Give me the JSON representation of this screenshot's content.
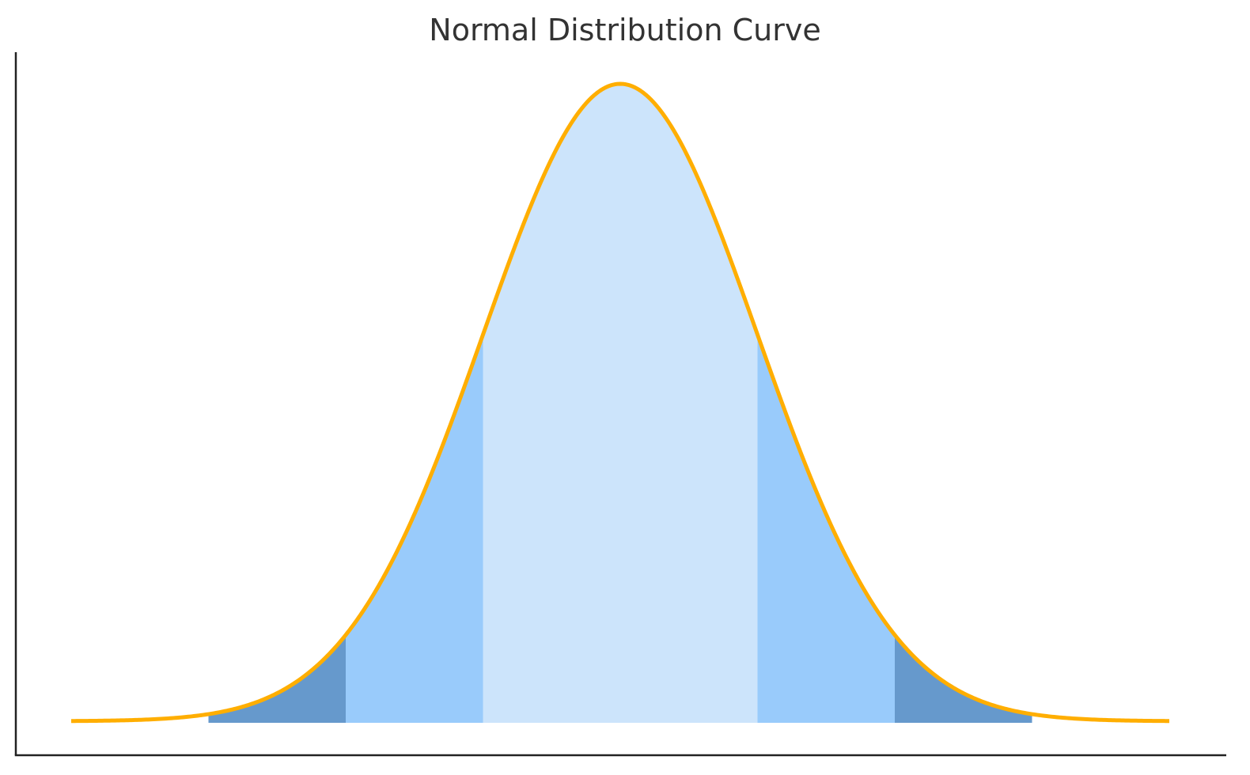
{
  "chart_data": {
    "type": "area",
    "title": "Normal Distribution Curve",
    "xlabel": "",
    "ylabel": "",
    "distribution": {
      "mean": 0,
      "std_dev": 1
    },
    "xlim": [
      -4,
      4
    ],
    "ylim": [
      -0.023,
      0.4
    ],
    "grid": false,
    "show_ticks": false,
    "bands": [
      {
        "from": -1,
        "to": 1,
        "color": "#cce4fb"
      },
      {
        "from": -2,
        "to": -1,
        "color": "#99cbfb"
      },
      {
        "from": 1,
        "to": 2,
        "color": "#99cbfb"
      },
      {
        "from": -3,
        "to": -2,
        "color": "#6699cc"
      },
      {
        "from": 2,
        "to": 3,
        "color": "#6699cc"
      }
    ],
    "curve_color": "#ffae00",
    "axis_color": "#222222"
  }
}
